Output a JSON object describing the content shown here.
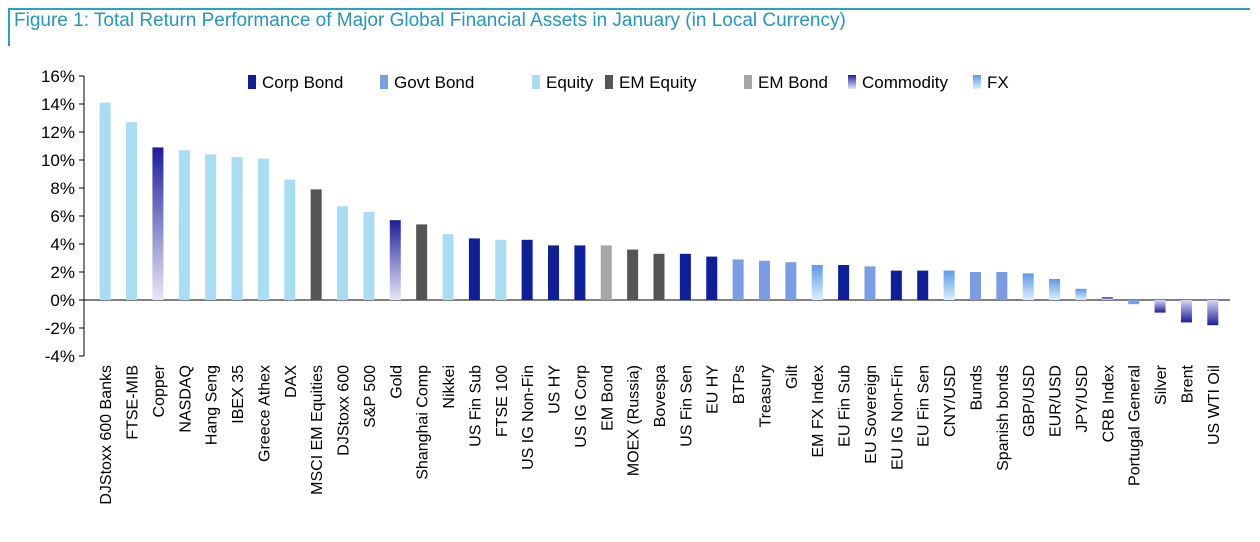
{
  "title": "Figure 1: Total Return Performance of Major Global Financial Assets in January (in Local Currency)",
  "chart_data": {
    "type": "bar",
    "ylim": [
      -4,
      16
    ],
    "yticks": [
      -4,
      -2,
      0,
      2,
      4,
      6,
      8,
      10,
      12,
      14,
      16
    ],
    "ytick_suffix": "%",
    "legend_position": "top",
    "legend": [
      {
        "name": "Corp Bond",
        "color": "#0f1f99"
      },
      {
        "name": "Govt Bond",
        "color": "#7b9de6"
      },
      {
        "name": "Equity",
        "color": "#a8ddf3"
      },
      {
        "name": "EM Equity",
        "color": "#555555"
      },
      {
        "name": "EM Bond",
        "color": "#a6a6a6"
      },
      {
        "name": "Commodity",
        "color": "#1d1d9a"
      },
      {
        "name": "FX",
        "color": "#5a9ae8"
      }
    ],
    "categories": [
      "DJStoxx 600 Banks",
      "FTSE-MIB",
      "Copper",
      "NASDAQ",
      "Hang Seng",
      "IBEX 35",
      "Greece Athex",
      "DAX",
      "MSCI EM Equities",
      "DJStoxx 600",
      "S&P 500",
      "Gold",
      "Shanghai Comp",
      "Nikkei",
      "US Fin Sub",
      "FTSE 100",
      "US IG Non-Fin",
      "US HY",
      "US IG Corp",
      "EM Bond",
      "MOEX (Russia)",
      "Bovespa",
      "US Fin Sen",
      "EU HY",
      "BTPs",
      "Treasury",
      "Gilt",
      "EM FX Index",
      "EU Fin Sub",
      "EU Sovereign",
      "EU IG Non-Fin",
      "EU Fin Sen",
      "CNY/USD",
      "Bunds",
      "Spanish bonds",
      "GBP/USD",
      "EUR/USD",
      "JPY/USD",
      "CRB Index",
      "Portugal General",
      "Silver",
      "Brent",
      "US WTI Oil"
    ],
    "values": [
      14.1,
      12.7,
      10.9,
      10.7,
      10.4,
      10.2,
      10.1,
      8.6,
      7.9,
      6.7,
      6.3,
      5.7,
      5.4,
      4.7,
      4.4,
      4.3,
      4.3,
      3.9,
      3.9,
      3.9,
      3.6,
      3.3,
      3.3,
      3.1,
      2.9,
      2.8,
      2.7,
      2.5,
      2.5,
      2.4,
      2.1,
      2.1,
      2.1,
      2.0,
      2.0,
      1.9,
      1.5,
      0.8,
      0.2,
      -0.3,
      -0.9,
      -1.6,
      -1.8
    ],
    "classes": [
      "Equity",
      "Equity",
      "Commodity",
      "Equity",
      "Equity",
      "Equity",
      "Equity",
      "Equity",
      "EM Equity",
      "Equity",
      "Equity",
      "Commodity",
      "EM Equity",
      "Equity",
      "Corp Bond",
      "Equity",
      "Corp Bond",
      "Corp Bond",
      "Corp Bond",
      "EM Bond",
      "EM Equity",
      "EM Equity",
      "Corp Bond",
      "Corp Bond",
      "Govt Bond",
      "Govt Bond",
      "Govt Bond",
      "FX",
      "Corp Bond",
      "Govt Bond",
      "Corp Bond",
      "Corp Bond",
      "FX",
      "Govt Bond",
      "Govt Bond",
      "FX",
      "FX",
      "FX",
      "Commodity",
      "Govt Bond",
      "Commodity",
      "Commodity",
      "Commodity"
    ]
  }
}
